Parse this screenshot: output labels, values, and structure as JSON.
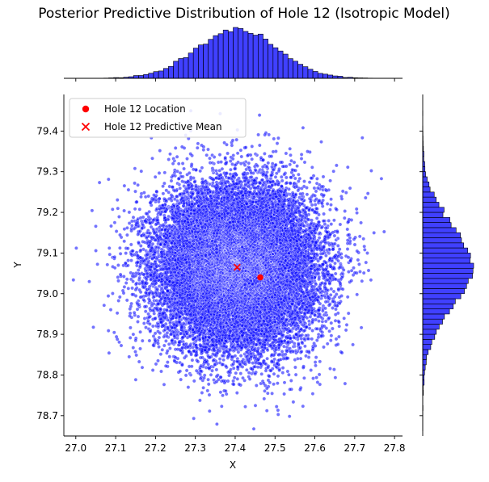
{
  "chart_data": {
    "type": "scatter",
    "title": "Posterior Predictive Distribution of Hole 12 (Isotropic Model)",
    "xlabel": "X",
    "ylabel": "Y",
    "xlim": [
      26.97,
      27.82
    ],
    "ylim": [
      78.65,
      79.49
    ],
    "xticks": [
      27.0,
      27.1,
      27.2,
      27.3,
      27.4,
      27.5,
      27.6,
      27.7,
      27.8
    ],
    "xtick_labels": [
      "27.0",
      "27.1",
      "27.2",
      "27.3",
      "27.4",
      "27.5",
      "27.6",
      "27.7",
      "27.8"
    ],
    "yticks": [
      78.7,
      78.8,
      78.9,
      79.0,
      79.1,
      79.2,
      79.3,
      79.4
    ],
    "ytick_labels": [
      "78.7",
      "78.8",
      "78.9",
      "79.0",
      "79.1",
      "79.2",
      "79.3",
      "79.4"
    ],
    "grid": false,
    "legend_position": "upper-left",
    "samples": {
      "name": "",
      "color": "#0000ff",
      "count": 20000,
      "center": [
        27.405,
        79.065
      ],
      "std": [
        0.1,
        0.1
      ]
    },
    "points": [
      {
        "name": "Hole 12 Location",
        "x": 27.463,
        "y": 79.04,
        "marker": "circle",
        "color": "#ff0000"
      },
      {
        "name": "Hole 12 Predictive Mean",
        "x": 27.405,
        "y": 79.065,
        "marker": "x",
        "color": "#ff0000"
      }
    ],
    "x_histogram": {
      "bin_edges_start": 26.97,
      "bin_width": 0.0125,
      "bins": 68,
      "color": "#0000ff"
    },
    "y_histogram": {
      "bin_edges_start": 78.65,
      "bin_width": 0.0125,
      "bins": 67,
      "color": "#0000ff"
    }
  },
  "legend": {
    "items": [
      {
        "label": "Hole 12 Location"
      },
      {
        "label": "Hole 12 Predictive Mean"
      }
    ]
  }
}
